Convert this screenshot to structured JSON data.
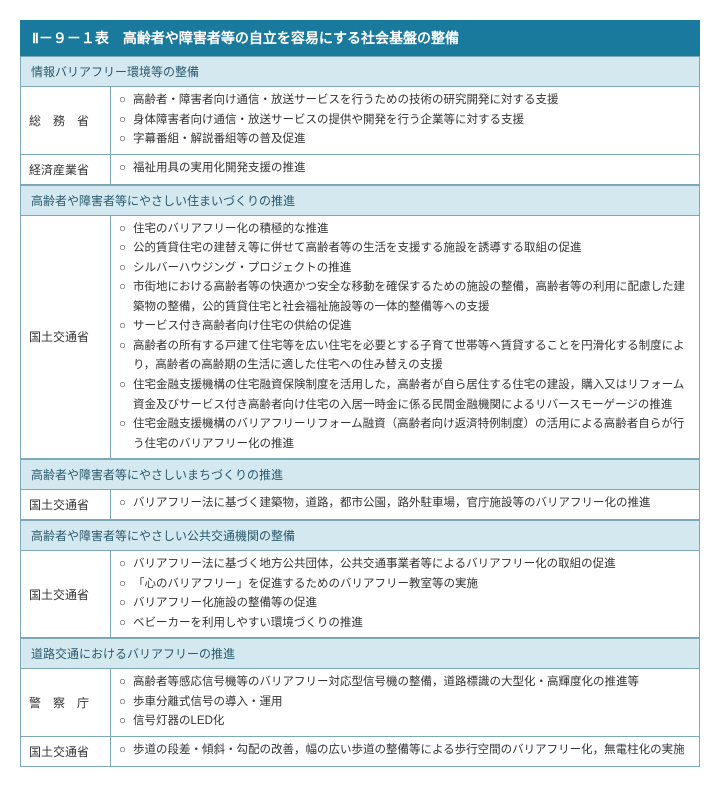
{
  "title": "Ⅱ－９－１表　高齢者や障害者等の自立を容易にする社会基盤の整備",
  "colors": {
    "title_bg": "#1a7a9e",
    "title_fg": "#ffffff",
    "section_bg": "#d4e8ef",
    "section_fg": "#2a5a6e",
    "border": "#7da8b8",
    "text": "#333333"
  },
  "sections": [
    {
      "header": "情報バリアフリー環境等の整備",
      "rows": [
        {
          "ministry": "総　務　省",
          "items": [
            "高齢者・障害者向け通信・放送サービスを行うための技術の研究開発に対する支援",
            "身体障害者向け通信・放送サービスの提供や開発を行う企業等に対する支援",
            "字幕番組・解説番組等の普及促進"
          ]
        },
        {
          "ministry": "経済産業省",
          "items": [
            "福祉用具の実用化開発支援の推進"
          ]
        }
      ]
    },
    {
      "header": "高齢者や障害者等にやさしい住まいづくりの推進",
      "rows": [
        {
          "ministry": "国土交通省",
          "items": [
            "住宅のバリアフリー化の積極的な推進",
            "公的賃貸住宅の建替え等に併せて高齢者等の生活を支援する施設を誘導する取組の促進",
            "シルバーハウジング・プロジェクトの推進",
            "市街地における高齢者等の快適かつ安全な移動を確保するための施設の整備，高齢者等の利用に配慮した建築物の整備，公的賃貸住宅と社会福祉施設等の一体的整備等への支援",
            "サービス付き高齢者向け住宅の供給の促進",
            "高齢者の所有する戸建て住宅等を広い住宅を必要とする子育て世帯等へ賃貸することを円滑化する制度により，高齢者の高齢期の生活に適した住宅への住み替えの支援",
            "住宅金融支援機構の住宅融資保険制度を活用した，高齢者が自ら居住する住宅の建設，購入又はリフォーム資金及びサービス付き高齢者向け住宅の入居一時金に係る民間金融機関によるリバースモーゲージの推進",
            "住宅金融支援機構のバリアフリーリフォーム融資（高齢者向け返済特例制度）の活用による高齢者自らが行う住宅のバリアフリー化の推進"
          ]
        }
      ]
    },
    {
      "header": "高齢者や障害者等にやさしいまちづくりの推進",
      "rows": [
        {
          "ministry": "国土交通省",
          "items": [
            "バリアフリー法に基づく建築物，道路，都市公園，路外駐車場，官庁施設等のバリアフリー化の推進"
          ]
        }
      ]
    },
    {
      "header": "高齢者や障害者等にやさしい公共交通機関の整備",
      "rows": [
        {
          "ministry": "国土交通省",
          "items": [
            "バリアフリー法に基づく地方公共団体，公共交通事業者等によるバリアフリー化の取組の促進",
            "「心のバリアフリー」を促進するためのバリアフリー教室等の実施",
            "バリアフリー化施設の整備等の促進",
            "ベビーカーを利用しやすい環境づくりの推進"
          ]
        }
      ]
    },
    {
      "header": "道路交通におけるバリアフリーの推進",
      "rows": [
        {
          "ministry": "警　察　庁",
          "items": [
            "高齢者等感応信号機等のバリアフリー対応型信号機の整備，道路標識の大型化・高輝度化の推進等",
            "歩車分離式信号の導入・運用",
            "信号灯器のLED化"
          ]
        },
        {
          "ministry": "国土交通省",
          "items": [
            "歩道の段差・傾斜・勾配の改善，幅の広い歩道の整備等による歩行空間のバリアフリー化，無電柱化の実施"
          ]
        }
      ]
    }
  ],
  "bullet": "○"
}
